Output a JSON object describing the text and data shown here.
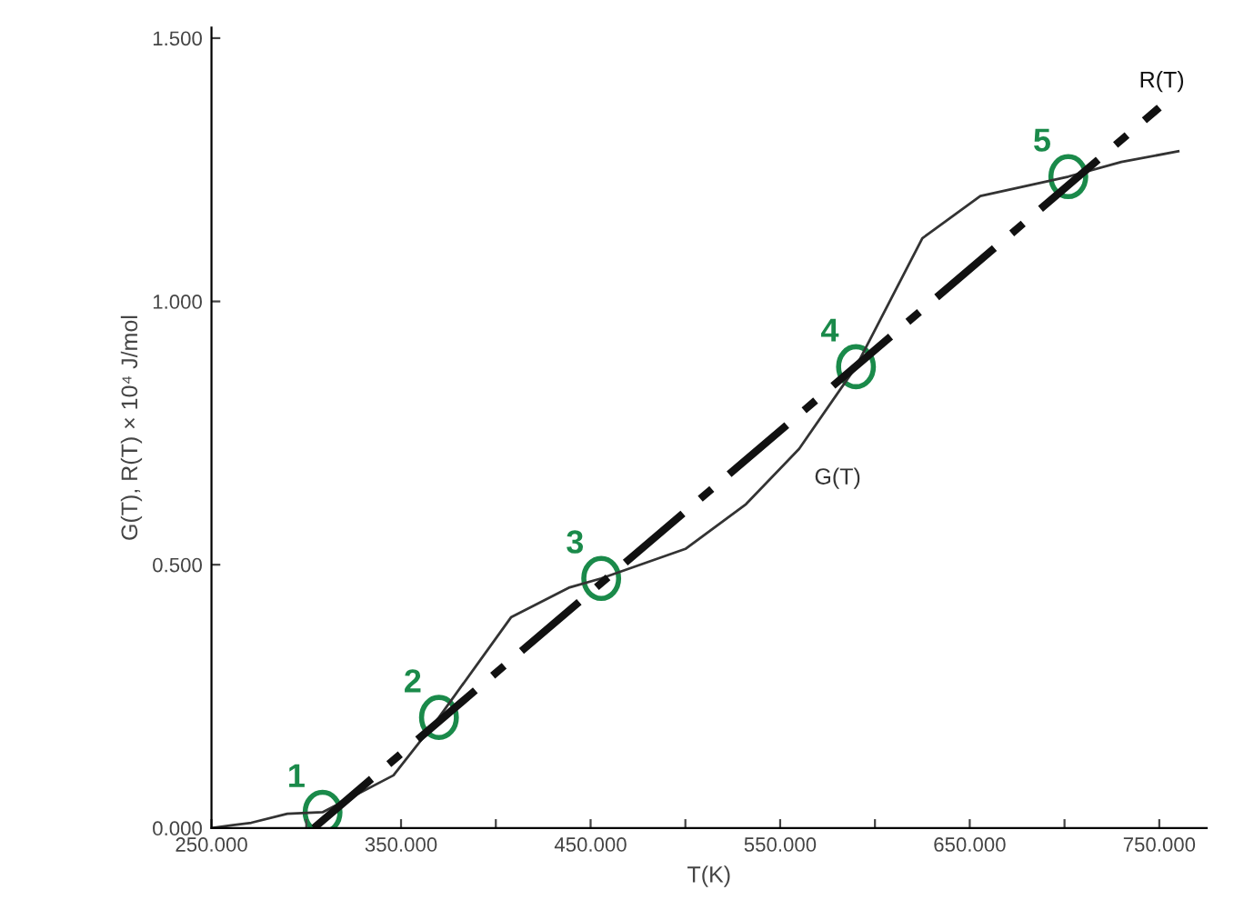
{
  "chart_data": {
    "type": "line",
    "xlabel": "T(K)",
    "ylabel": "G(T), R(T) × 10⁴ J/mol",
    "xlim": [
      250,
      775
    ],
    "ylim": [
      0,
      1.52
    ],
    "xticks": [
      {
        "value": 250,
        "label": "250.000"
      },
      {
        "value": 300,
        "label": null
      },
      {
        "value": 350,
        "label": "350.000"
      },
      {
        "value": 400,
        "label": null
      },
      {
        "value": 450,
        "label": "450.000"
      },
      {
        "value": 500,
        "label": null
      },
      {
        "value": 550,
        "label": "550.000"
      },
      {
        "value": 600,
        "label": null
      },
      {
        "value": 650,
        "label": "650.000"
      },
      {
        "value": 700,
        "label": null
      },
      {
        "value": 750,
        "label": "750.000"
      }
    ],
    "yticks": [
      {
        "value": 0,
        "label": "0.000"
      },
      {
        "value": 0.5,
        "label": "0.500"
      },
      {
        "value": 1.0,
        "label": "1.000"
      },
      {
        "value": 1.5,
        "label": "1.500"
      }
    ],
    "grid": false,
    "legend": false,
    "series": [
      {
        "name": "G(T)",
        "color": "#333333",
        "line_style": "solid",
        "x": [
          250,
          271,
          290,
          308.6,
          346,
          370,
          408,
          439,
          455.6,
          500,
          532,
          560,
          590,
          625,
          655.6,
          702,
          730,
          760
        ],
        "values": [
          0.0,
          0.01,
          0.027,
          0.03,
          0.1,
          0.21,
          0.4,
          0.457,
          0.474,
          0.53,
          0.615,
          0.72,
          0.876,
          1.12,
          1.2,
          1.237,
          1.265,
          1.285
        ]
      },
      {
        "name": "R(T)",
        "color": "#111111",
        "line_style": "dashed",
        "x": [
          304,
          750
        ],
        "values": [
          0.0,
          1.368
        ]
      }
    ],
    "annotations": [
      {
        "text": "1",
        "x": 308.6,
        "y": 0.03
      },
      {
        "text": "2",
        "x": 370,
        "y": 0.21
      },
      {
        "text": "3",
        "x": 455.6,
        "y": 0.474
      },
      {
        "text": "4",
        "x": 590,
        "y": 0.876
      },
      {
        "text": "5",
        "x": 702,
        "y": 1.237
      }
    ]
  }
}
